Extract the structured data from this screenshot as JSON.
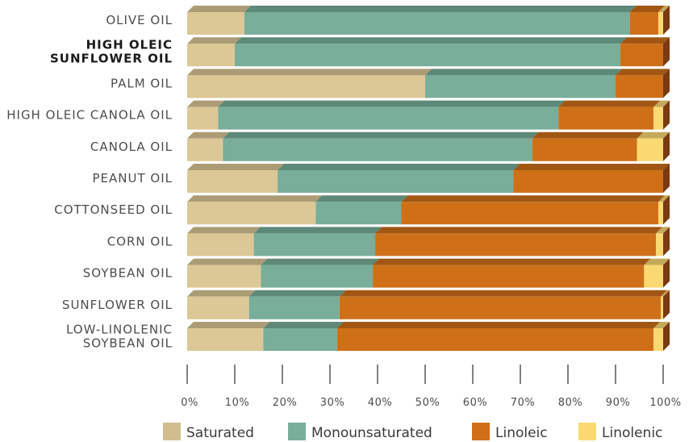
{
  "chart_data": {
    "type": "bar",
    "orientation": "horizontal",
    "stacked": true,
    "categories": [
      [
        "OLIVE OIL"
      ],
      [
        "HIGH OLEIC",
        "SUNFLOWER OIL"
      ],
      [
        "PALM OIL"
      ],
      [
        "HIGH OLEIC CANOLA OIL"
      ],
      [
        "CANOLA OIL"
      ],
      [
        "PEANUT OIL"
      ],
      [
        "COTTONSEED OIL"
      ],
      [
        "CORN OIL"
      ],
      [
        "SOYBEAN OIL"
      ],
      [
        "SUNFLOWER OIL"
      ],
      [
        "LOW-LINOLENIC",
        "SOYBEAN OIL"
      ]
    ],
    "highlighted_category": 1,
    "series": [
      {
        "name": "Saturated",
        "color": "#dcc896",
        "values": [
          12,
          10,
          50,
          6.5,
          7.5,
          19,
          27,
          14,
          15.5,
          13,
          16
        ]
      },
      {
        "name": "Monounsaturated",
        "color": "#78ae9a",
        "values": [
          81,
          81,
          40,
          71.5,
          65,
          49.5,
          18,
          25.5,
          23.5,
          19,
          15.5
        ]
      },
      {
        "name": "Linoleic",
        "color": "#cf7018",
        "values": [
          6,
          9,
          10,
          20,
          22,
          31.5,
          54,
          59,
          57,
          67.5,
          66.5
        ]
      },
      {
        "name": "Linolenic",
        "color": "#fad972",
        "values": [
          1,
          0,
          0,
          2,
          5.5,
          0,
          1,
          1.5,
          4,
          0.5,
          2
        ]
      }
    ],
    "xlim": [
      0,
      100
    ],
    "x_ticks": [
      "0%",
      "10%",
      "20%",
      "30%",
      "40%",
      "50%",
      "60%",
      "70%",
      "80%",
      "90%",
      "100%"
    ],
    "legend_position": "bottom",
    "title": "",
    "xlabel": "",
    "ylabel": ""
  }
}
